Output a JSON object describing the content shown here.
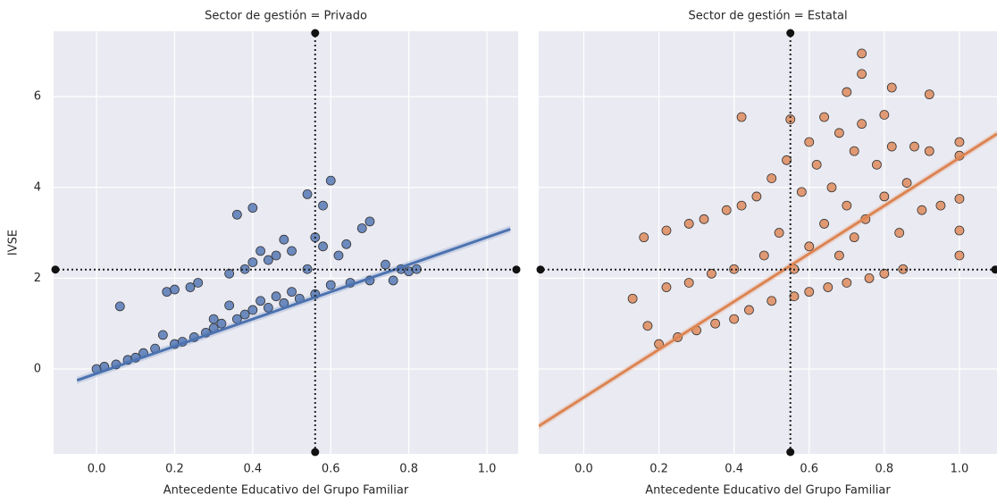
{
  "chart_data": [
    {
      "type": "scatter",
      "title": "Sector de gestión = Privado",
      "x_label": "Antecedente Educativo del Grupo Familiar",
      "y_label": "IVSE",
      "color": "#4c72b0",
      "xlim": [
        -0.11,
        1.08
      ],
      "ylim": [
        -1.87,
        7.44
      ],
      "xticks": [
        {
          "value": 0,
          "label": "0.0"
        },
        0.2,
        0.4,
        0.6,
        0.8,
        {
          "value": 1,
          "label": "1.0"
        }
      ],
      "yticks": [
        0,
        2,
        4,
        6
      ],
      "ref_x": 0.56,
      "ref_y": 2.19,
      "regression": {
        "x": [
          -0.05,
          1.06
        ],
        "y": [
          -0.25,
          3.08
        ]
      },
      "x": [
        0,
        0.02,
        0.05,
        0.06,
        0.08,
        0.1,
        0.12,
        0.15,
        0.17,
        0.18,
        0.2,
        0.2,
        0.22,
        0.24,
        0.25,
        0.26,
        0.28,
        0.3,
        0.3,
        0.32,
        0.34,
        0.34,
        0.36,
        0.36,
        0.38,
        0.38,
        0.4,
        0.4,
        0.4,
        0.42,
        0.42,
        0.44,
        0.44,
        0.46,
        0.46,
        0.48,
        0.48,
        0.5,
        0.5,
        0.52,
        0.54,
        0.54,
        0.56,
        0.56,
        0.58,
        0.58,
        0.6,
        0.6,
        0.62,
        0.64,
        0.65,
        0.68,
        0.7,
        0.7,
        0.74,
        0.76,
        0.78,
        0.8,
        0.82
      ],
      "values": [
        0,
        0.05,
        0.1,
        1.38,
        0.2,
        0.25,
        0.35,
        0.45,
        0.75,
        1.7,
        0.55,
        1.75,
        0.6,
        1.8,
        0.7,
        1.9,
        0.8,
        0.9,
        1.1,
        1.0,
        2.1,
        1.4,
        3.4,
        1.1,
        2.2,
        1.2,
        3.55,
        2.35,
        1.3,
        2.6,
        1.5,
        2.4,
        1.35,
        2.5,
        1.6,
        2.85,
        1.45,
        2.6,
        1.7,
        1.55,
        3.85,
        2.2,
        2.9,
        1.65,
        3.6,
        2.7,
        4.15,
        1.85,
        2.5,
        2.75,
        1.9,
        3.1,
        3.25,
        1.95,
        2.3,
        1.95,
        2.2,
        2.15,
        2.2
      ]
    },
    {
      "type": "scatter",
      "title": "Sector de gestión = Estatal",
      "x_label": "Antecedente Educativo del Grupo Familiar",
      "color": "#dd8452",
      "xlim": [
        -0.12,
        1.1
      ],
      "ylim": [
        -1.87,
        7.44
      ],
      "xticks": [
        {
          "value": 0,
          "label": "0.0"
        },
        0.2,
        0.4,
        0.6,
        0.8,
        {
          "value": 1,
          "label": "1.0"
        }
      ],
      "ref_x": 0.55,
      "ref_y": 2.19,
      "regression": {
        "x": [
          -0.12,
          1.1
        ],
        "y": [
          -1.26,
          5.18
        ]
      },
      "x": [
        0.13,
        0.16,
        0.17,
        0.2,
        0.22,
        0.22,
        0.25,
        0.28,
        0.28,
        0.3,
        0.32,
        0.34,
        0.35,
        0.38,
        0.4,
        0.4,
        0.42,
        0.42,
        0.44,
        0.46,
        0.48,
        0.5,
        0.5,
        0.52,
        0.54,
        0.55,
        0.56,
        0.56,
        0.58,
        0.6,
        0.6,
        0.6,
        0.62,
        0.64,
        0.64,
        0.65,
        0.66,
        0.68,
        0.68,
        0.7,
        0.7,
        0.7,
        0.72,
        0.72,
        0.74,
        0.74,
        0.74,
        0.75,
        0.76,
        0.78,
        0.8,
        0.8,
        0.8,
        0.82,
        0.82,
        0.84,
        0.85,
        0.86,
        0.88,
        0.9,
        0.92,
        0.92,
        0.95,
        1,
        1,
        1,
        1,
        1
      ],
      "values": [
        1.55,
        2.9,
        0.95,
        0.55,
        3.05,
        1.8,
        0.7,
        3.2,
        1.9,
        0.85,
        3.3,
        2.1,
        1.0,
        3.5,
        2.2,
        1.1,
        5.55,
        3.6,
        1.3,
        3.8,
        2.5,
        4.2,
        1.5,
        3.0,
        4.6,
        5.5,
        2.2,
        1.6,
        3.9,
        5.0,
        2.7,
        1.7,
        4.5,
        5.55,
        3.2,
        1.8,
        4.0,
        5.2,
        2.5,
        6.1,
        3.6,
        1.9,
        4.8,
        2.9,
        6.95,
        6.5,
        5.4,
        3.3,
        2.0,
        4.5,
        5.6,
        3.8,
        2.1,
        6.2,
        4.9,
        3.0,
        2.2,
        4.1,
        4.9,
        3.5,
        6.05,
        4.8,
        3.6,
        5.0,
        4.7,
        3.75,
        3.05,
        2.5
      ]
    }
  ]
}
